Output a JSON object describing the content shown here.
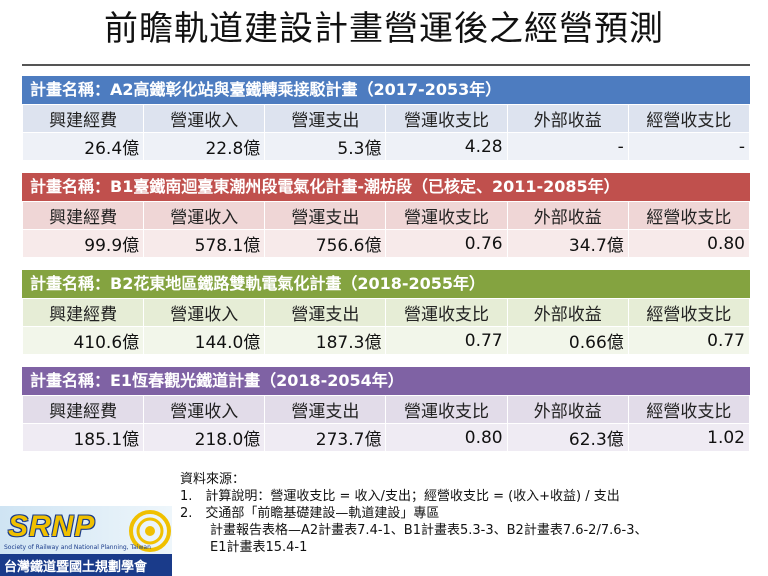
{
  "title": "前瞻軌道建設計畫營運後之經營預測",
  "columns": [
    "興建經費",
    "營運收入",
    "營運支出",
    "營運收支比",
    "外部收益",
    "經營收支比"
  ],
  "projects": [
    {
      "name": "計畫名稱：A2高鐵彰化站與臺鐵轉乘接駁計畫（2017-2053年）",
      "values": [
        "26.4億",
        "22.8億",
        "5.3億",
        "4.28",
        "-",
        "-"
      ],
      "header_color": "#4d7cc0",
      "row_color": "#dde3ef",
      "val_color": "#eef1f7"
    },
    {
      "name": "計畫名稱：B1臺鐵南迴臺東潮州段電氣化計畫-潮枋段（已核定、2011-2085年）",
      "values": [
        "99.9億",
        "578.1億",
        "756.6億",
        "0.76",
        "34.7億",
        "0.80"
      ],
      "header_color": "#c0504d",
      "row_color": "#efd6d6",
      "val_color": "#f7eaea"
    },
    {
      "name": "計畫名稱：B2花東地區鐵路雙軌電氣化計畫（2018-2055年）",
      "values": [
        "410.6億",
        "144.0億",
        "187.3億",
        "0.77",
        "0.66億",
        "0.77"
      ],
      "header_color": "#84a340",
      "row_color": "#e6edd6",
      "val_color": "#f2f6ea"
    },
    {
      "name": "計畫名稱：E1恆春觀光鐵道計畫（2018-2054年）",
      "values": [
        "185.1億",
        "218.0億",
        "273.7億",
        "0.80",
        "62.3億",
        "1.02"
      ],
      "header_color": "#7f62a4",
      "row_color": "#e2dce9",
      "val_color": "#efebf3"
    }
  ],
  "source": {
    "heading": "資料來源：",
    "line1": "1.　計算說明：營運收支比 = 收入/支出；經營收支比 = (收入+收益) / 支出",
    "line2": "2.　交通部「前瞻基礎建設—軌道建設」專區",
    "line3": "計畫報告表格—A2計畫表7.4-1、B1計畫表5.3-3、B2計畫表7.6-2/7.6-3、",
    "line4": "E1計畫表15.4-1"
  },
  "logo": {
    "abbr": "SRNP",
    "english": "Society of Railway and National Planning, Taiwan",
    "chinese": "台灣鐵道暨國土規劃學會",
    "text_color": "#f0c000",
    "brand_color": "#1a3b8a"
  }
}
